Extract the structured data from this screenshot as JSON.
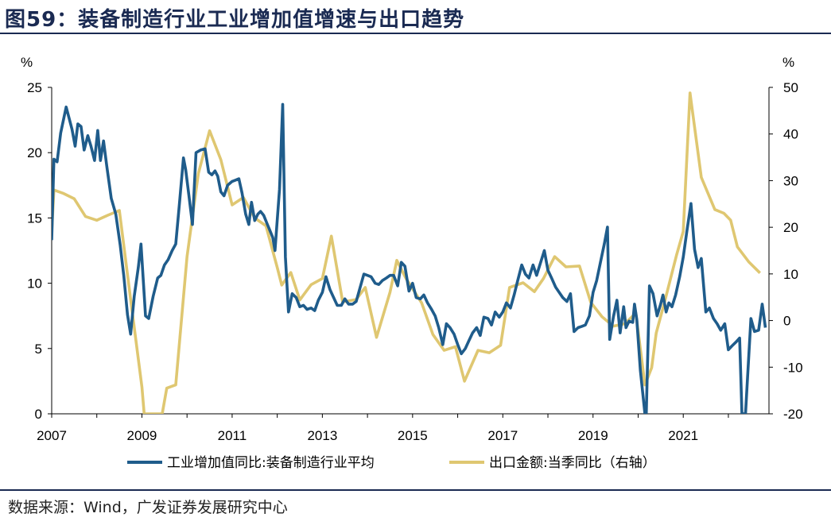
{
  "figure": {
    "title": "图59：装备制造行业工业增加值增速与出口趋势",
    "source": "数据来源：Wind，广发证券发展研究中心"
  },
  "chart_data": {
    "type": "line",
    "x_unit": "year",
    "xlim": [
      2007.0,
      2022.9
    ],
    "x_ticks": [
      "2007",
      "2009",
      "2011",
      "2013",
      "2015",
      "2017",
      "2019",
      "2021"
    ],
    "left_axis": {
      "unit_label": "%",
      "ylim": [
        0,
        25
      ],
      "ticks": [
        "0",
        "5",
        "10",
        "15",
        "20",
        "25"
      ]
    },
    "right_axis": {
      "unit_label": "%",
      "ylim": [
        -20,
        50
      ],
      "ticks": [
        "-20",
        "-10",
        "0",
        "10",
        "20",
        "30",
        "40",
        "50"
      ]
    },
    "grid": false,
    "legend_position": "bottom",
    "series": [
      {
        "name": "工业增加值同比:装备制造行业平均",
        "axis": "left",
        "color": "#1f5c8b",
        "points": [
          [
            2007.0,
            13.3
          ],
          [
            2007.05,
            19.5
          ],
          [
            2007.12,
            19.3
          ],
          [
            2007.2,
            21.5
          ],
          [
            2007.32,
            23.5
          ],
          [
            2007.45,
            21.8
          ],
          [
            2007.52,
            20.5
          ],
          [
            2007.58,
            22.2
          ],
          [
            2007.65,
            22.0
          ],
          [
            2007.72,
            20.2
          ],
          [
            2007.8,
            21.3
          ],
          [
            2007.87,
            20.5
          ],
          [
            2007.95,
            19.4
          ],
          [
            2008.02,
            21.7
          ],
          [
            2008.08,
            19.4
          ],
          [
            2008.15,
            20.9
          ],
          [
            2008.22,
            19.0
          ],
          [
            2008.32,
            16.5
          ],
          [
            2008.42,
            15.3
          ],
          [
            2008.52,
            12.9
          ],
          [
            2008.6,
            10.5
          ],
          [
            2008.68,
            7.6
          ],
          [
            2008.75,
            6.1
          ],
          [
            2008.83,
            9.0
          ],
          [
            2008.92,
            11.2
          ],
          [
            2008.98,
            13.0
          ],
          [
            2009.08,
            7.5
          ],
          [
            2009.15,
            7.3
          ],
          [
            2009.25,
            9.0
          ],
          [
            2009.35,
            10.4
          ],
          [
            2009.42,
            10.6
          ],
          [
            2009.5,
            11.4
          ],
          [
            2009.58,
            11.8
          ],
          [
            2009.67,
            12.5
          ],
          [
            2009.75,
            13.0
          ],
          [
            2009.83,
            16.0
          ],
          [
            2009.92,
            19.6
          ],
          [
            2009.97,
            18.7
          ],
          [
            2010.05,
            16.5
          ],
          [
            2010.12,
            14.5
          ],
          [
            2010.2,
            20.0
          ],
          [
            2010.3,
            20.2
          ],
          [
            2010.4,
            20.3
          ],
          [
            2010.48,
            18.5
          ],
          [
            2010.55,
            18.3
          ],
          [
            2010.62,
            18.6
          ],
          [
            2010.68,
            18.2
          ],
          [
            2010.75,
            17.0
          ],
          [
            2010.82,
            16.7
          ],
          [
            2010.9,
            17.5
          ],
          [
            2011.0,
            17.8
          ],
          [
            2011.08,
            17.9
          ],
          [
            2011.15,
            18.0
          ],
          [
            2011.22,
            16.9
          ],
          [
            2011.3,
            15.3
          ],
          [
            2011.37,
            14.5
          ],
          [
            2011.43,
            16.2
          ],
          [
            2011.5,
            14.8
          ],
          [
            2011.57,
            15.3
          ],
          [
            2011.63,
            15.5
          ],
          [
            2011.7,
            15.2
          ],
          [
            2011.77,
            14.6
          ],
          [
            2011.83,
            14.1
          ],
          [
            2011.9,
            13.5
          ],
          [
            2011.95,
            12.5
          ],
          [
            2012.05,
            17.2
          ],
          [
            2012.12,
            23.7
          ],
          [
            2012.18,
            12.0
          ],
          [
            2012.25,
            7.8
          ],
          [
            2012.33,
            9.2
          ],
          [
            2012.42,
            8.9
          ],
          [
            2012.5,
            8.2
          ],
          [
            2012.58,
            8.3
          ],
          [
            2012.66,
            8.0
          ],
          [
            2012.75,
            8.1
          ],
          [
            2012.83,
            7.9
          ],
          [
            2012.91,
            8.7
          ],
          [
            2013.0,
            9.3
          ],
          [
            2013.08,
            10.5
          ],
          [
            2013.17,
            9.5
          ],
          [
            2013.25,
            8.9
          ],
          [
            2013.33,
            8.3
          ],
          [
            2013.42,
            8.3
          ],
          [
            2013.5,
            8.8
          ],
          [
            2013.58,
            8.4
          ],
          [
            2013.67,
            8.4
          ],
          [
            2013.75,
            8.6
          ],
          [
            2013.83,
            9.6
          ],
          [
            2013.92,
            10.7
          ],
          [
            2014.0,
            10.6
          ],
          [
            2014.08,
            10.5
          ],
          [
            2014.17,
            10.0
          ],
          [
            2014.25,
            9.9
          ],
          [
            2014.33,
            10.2
          ],
          [
            2014.42,
            10.4
          ],
          [
            2014.5,
            10.6
          ],
          [
            2014.58,
            10.6
          ],
          [
            2014.67,
            9.8
          ],
          [
            2014.75,
            11.6
          ],
          [
            2014.83,
            11.3
          ],
          [
            2014.92,
            9.4
          ],
          [
            2015.0,
            10.0
          ],
          [
            2015.08,
            8.9
          ],
          [
            2015.17,
            8.8
          ],
          [
            2015.25,
            9.1
          ],
          [
            2015.33,
            8.5
          ],
          [
            2015.42,
            8.0
          ],
          [
            2015.5,
            7.5
          ],
          [
            2015.58,
            6.6
          ],
          [
            2015.67,
            5.3
          ],
          [
            2015.75,
            6.9
          ],
          [
            2015.83,
            6.6
          ],
          [
            2015.92,
            6.1
          ],
          [
            2016.0,
            5.3
          ],
          [
            2016.08,
            4.6
          ],
          [
            2016.17,
            5.0
          ],
          [
            2016.25,
            5.6
          ],
          [
            2016.33,
            6.2
          ],
          [
            2016.42,
            6.6
          ],
          [
            2016.5,
            6.0
          ],
          [
            2016.58,
            7.4
          ],
          [
            2016.67,
            7.3
          ],
          [
            2016.75,
            6.8
          ],
          [
            2016.83,
            7.8
          ],
          [
            2016.92,
            7.4
          ],
          [
            2017.0,
            7.8
          ],
          [
            2017.08,
            8.5
          ],
          [
            2017.17,
            8.1
          ],
          [
            2017.25,
            9.1
          ],
          [
            2017.33,
            10.2
          ],
          [
            2017.42,
            11.4
          ],
          [
            2017.5,
            10.7
          ],
          [
            2017.58,
            10.4
          ],
          [
            2017.67,
            11.4
          ],
          [
            2017.75,
            10.6
          ],
          [
            2017.83,
            11.5
          ],
          [
            2017.92,
            12.5
          ],
          [
            2018.0,
            11.0
          ],
          [
            2018.08,
            10.4
          ],
          [
            2018.17,
            9.7
          ],
          [
            2018.25,
            9.3
          ],
          [
            2018.33,
            8.9
          ],
          [
            2018.42,
            8.6
          ],
          [
            2018.5,
            9.2
          ],
          [
            2018.58,
            6.3
          ],
          [
            2018.67,
            6.6
          ],
          [
            2018.75,
            6.7
          ],
          [
            2018.83,
            6.8
          ],
          [
            2018.92,
            7.5
          ],
          [
            2019.0,
            9.3
          ],
          [
            2019.08,
            10.2
          ],
          [
            2019.17,
            11.7
          ],
          [
            2019.25,
            13.0
          ],
          [
            2019.32,
            14.3
          ],
          [
            2019.37,
            5.7
          ],
          [
            2019.45,
            7.4
          ],
          [
            2019.53,
            8.7
          ],
          [
            2019.6,
            6.2
          ],
          [
            2019.68,
            8.2
          ],
          [
            2019.73,
            6.6
          ],
          [
            2019.8,
            7.1
          ],
          [
            2019.88,
            7.0
          ],
          [
            2019.92,
            8.4
          ],
          [
            2019.97,
            7.2
          ],
          [
            2020.05,
            3.3
          ],
          [
            2020.15,
            0.0
          ],
          [
            2020.18,
            0.0
          ],
          [
            2020.25,
            9.8
          ],
          [
            2020.33,
            9.2
          ],
          [
            2020.42,
            7.5
          ],
          [
            2020.5,
            8.4
          ],
          [
            2020.55,
            9.1
          ],
          [
            2020.62,
            7.8
          ],
          [
            2020.68,
            8.5
          ],
          [
            2020.75,
            8.2
          ],
          [
            2020.83,
            9.1
          ],
          [
            2020.92,
            10.5
          ],
          [
            2021.0,
            12.0
          ],
          [
            2021.08,
            14.0
          ],
          [
            2021.17,
            16.1
          ],
          [
            2021.25,
            12.6
          ],
          [
            2021.33,
            11.2
          ],
          [
            2021.4,
            11.9
          ],
          [
            2021.5,
            7.8
          ],
          [
            2021.58,
            8.1
          ],
          [
            2021.67,
            7.3
          ],
          [
            2021.75,
            6.9
          ],
          [
            2021.83,
            6.4
          ],
          [
            2021.92,
            6.9
          ],
          [
            2022.0,
            4.9
          ],
          [
            2022.08,
            5.2
          ],
          [
            2022.17,
            5.5
          ],
          [
            2022.25,
            5.8
          ],
          [
            2022.3,
            0.0
          ],
          [
            2022.38,
            0.0
          ],
          [
            2022.42,
            2.5
          ],
          [
            2022.5,
            7.3
          ],
          [
            2022.58,
            6.3
          ],
          [
            2022.67,
            6.4
          ],
          [
            2022.75,
            8.4
          ],
          [
            2022.82,
            6.6
          ]
        ]
      },
      {
        "name": "出口金额:当季同比（右轴）",
        "axis": "right",
        "color": "#dfc771",
        "points": [
          [
            2007.0,
            19.0
          ],
          [
            2007.05,
            28.0
          ],
          [
            2007.25,
            27.3
          ],
          [
            2007.5,
            26.1
          ],
          [
            2007.75,
            22.3
          ],
          [
            2008.0,
            21.5
          ],
          [
            2008.25,
            22.6
          ],
          [
            2008.5,
            23.6
          ],
          [
            2008.75,
            4.5
          ],
          [
            2009.0,
            -14.3
          ],
          [
            2009.05,
            -20.0
          ],
          [
            2009.45,
            -20.0
          ],
          [
            2009.55,
            -14.5
          ],
          [
            2009.75,
            -13.8
          ],
          [
            2010.0,
            13.7
          ],
          [
            2010.25,
            31.5
          ],
          [
            2010.5,
            40.7
          ],
          [
            2010.75,
            34.5
          ],
          [
            2011.0,
            24.8
          ],
          [
            2011.25,
            26.4
          ],
          [
            2011.5,
            22.0
          ],
          [
            2011.75,
            20.3
          ],
          [
            2012.0,
            11.4
          ],
          [
            2012.1,
            7.6
          ],
          [
            2012.3,
            10.3
          ],
          [
            2012.5,
            4.4
          ],
          [
            2012.75,
            7.7
          ],
          [
            2013.0,
            9.0
          ],
          [
            2013.2,
            18.1
          ],
          [
            2013.45,
            4.0
          ],
          [
            2013.75,
            4.5
          ],
          [
            2013.95,
            7.1
          ],
          [
            2014.2,
            -3.6
          ],
          [
            2014.5,
            6.1
          ],
          [
            2014.65,
            12.9
          ],
          [
            2014.85,
            9.1
          ],
          [
            2015.2,
            3.8
          ],
          [
            2015.45,
            -3.0
          ],
          [
            2015.7,
            -6.4
          ],
          [
            2015.95,
            -5.6
          ],
          [
            2016.15,
            -13.0
          ],
          [
            2016.45,
            -6.4
          ],
          [
            2016.7,
            -6.9
          ],
          [
            2016.95,
            -5.3
          ],
          [
            2017.15,
            7.1
          ],
          [
            2017.45,
            8.1
          ],
          [
            2017.7,
            6.2
          ],
          [
            2017.9,
            9.0
          ],
          [
            2018.15,
            13.7
          ],
          [
            2018.4,
            11.5
          ],
          [
            2018.7,
            11.7
          ],
          [
            2018.95,
            3.9
          ],
          [
            2019.2,
            0.8
          ],
          [
            2019.45,
            -1.2
          ],
          [
            2019.7,
            -0.7
          ],
          [
            2019.95,
            1.6
          ],
          [
            2020.15,
            -13.8
          ],
          [
            2020.3,
            -10.1
          ],
          [
            2020.4,
            -2.7
          ],
          [
            2020.6,
            4.5
          ],
          [
            2020.85,
            14.0
          ],
          [
            2021.0,
            19.1
          ],
          [
            2021.15,
            48.8
          ],
          [
            2021.4,
            30.7
          ],
          [
            2021.7,
            23.8
          ],
          [
            2021.9,
            23.0
          ],
          [
            2022.05,
            21.5
          ],
          [
            2022.2,
            15.8
          ],
          [
            2022.45,
            12.6
          ],
          [
            2022.7,
            10.2
          ]
        ]
      }
    ]
  }
}
